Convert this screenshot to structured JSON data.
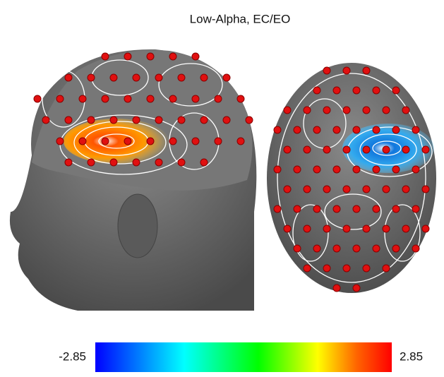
{
  "title": "Low-Alpha, EC/EO",
  "colorbar": {
    "min": -2.85,
    "max": 2.85
  }
}
